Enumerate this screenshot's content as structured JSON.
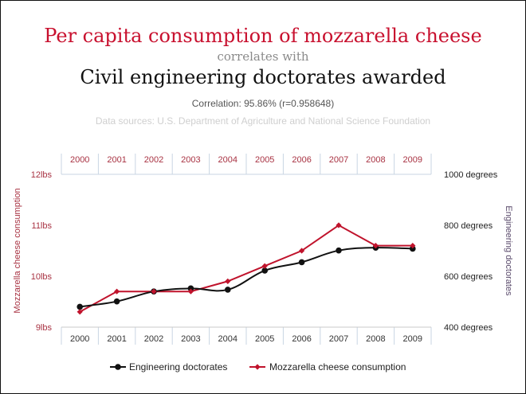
{
  "header": {
    "title": "Per capita consumption of mozzarella cheese",
    "connector": "correlates with",
    "subtitle": "Civil engineering doctorates awarded",
    "correlation": "Correlation: 95.86% (r=0.958648)",
    "sources": "Data sources: U.S. Department of Agriculture and National Science Foundation"
  },
  "colors": {
    "cheese": "#c0132c",
    "engineering": "#111111",
    "axis_left": "#a83242",
    "axis_right": "#222222",
    "right_title": "#5a4a6b",
    "grid": "#c9d6e3"
  },
  "chart_data": {
    "type": "line",
    "x": [
      "2000",
      "2001",
      "2002",
      "2003",
      "2004",
      "2005",
      "2006",
      "2007",
      "2008",
      "2009"
    ],
    "y_left": {
      "label": "Mozzarella cheese consumption",
      "range": [
        9,
        12
      ],
      "ticks": [
        9,
        10,
        11,
        12
      ],
      "tick_labels": [
        "9lbs",
        "10lbs",
        "11lbs",
        "12lbs"
      ]
    },
    "y_right": {
      "label": "Engineering doctorates",
      "range": [
        400,
        1000
      ],
      "ticks": [
        400,
        600,
        800,
        1000
      ],
      "tick_labels": [
        "400 degrees",
        "600 degrees",
        "800 degrees",
        "1000 degrees"
      ]
    },
    "series": [
      {
        "name": "Engineering doctorates",
        "axis": "right",
        "marker": "circle",
        "smooth": true,
        "values": [
          480,
          501,
          540,
          552,
          547,
          622,
          655,
          701,
          712,
          708
        ]
      },
      {
        "name": "Mozzarella cheese consumption",
        "axis": "left",
        "marker": "diamond",
        "smooth": false,
        "values": [
          9.3,
          9.7,
          9.7,
          9.7,
          9.9,
          10.2,
          10.5,
          11.0,
          10.6,
          10.6
        ]
      }
    ],
    "grid": "vertical lines at each year; horizontal line at top of plot",
    "legend": "bottom-center"
  }
}
